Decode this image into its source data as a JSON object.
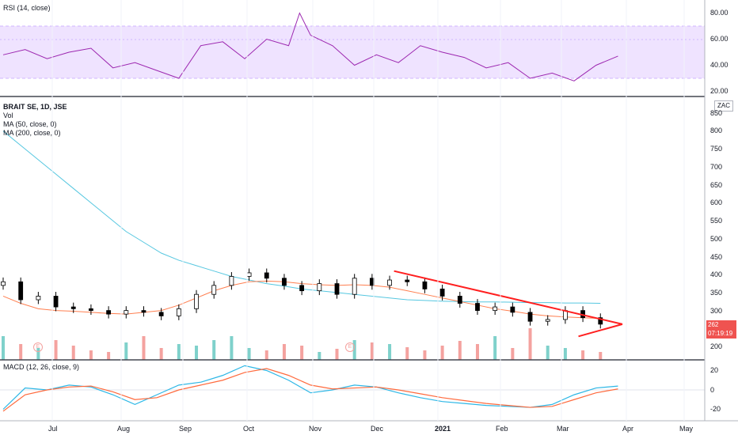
{
  "colors": {
    "up": "#26a69a",
    "down": "#ef5350",
    "rsi": "#9c27b0",
    "ma50": "#ff7f50",
    "ma200": "#56c7e0",
    "macd": "#2db7e6",
    "signal": "#ff6a3d",
    "trend": "#ff1f1f",
    "band": "#efe3ff",
    "volUp": "#7fd1cb",
    "volDown": "#f4a29f"
  },
  "rsi_panel": {
    "title": "RSI (14, close)",
    "ticks": [
      "80.00",
      "60.00",
      "40.00",
      "20.00"
    ]
  },
  "price_panel": {
    "legend": [
      "BRAIT SE, 1D, JSE",
      "Vol",
      "MA (50, close, 0)",
      "MA (200, close, 0)"
    ],
    "currency": "ZAC",
    "ticks": [
      "850",
      "800",
      "750",
      "700",
      "650",
      "600",
      "550",
      "500",
      "450",
      "400",
      "350",
      "300",
      "250",
      "200"
    ],
    "last_price": "262",
    "countdown": "07:19:19",
    "earnings_marker": "E"
  },
  "macd_panel": {
    "title": "MACD (12, 26, close, 9)",
    "ticks": [
      "20",
      "0",
      "-20"
    ]
  },
  "x_axis": {
    "labels": [
      "Jul",
      "Aug",
      "Sep",
      "Oct",
      "Nov",
      "Dec",
      "2021",
      "Feb",
      "Mar",
      "Apr",
      "May"
    ]
  },
  "chart_data": [
    {
      "type": "line",
      "title": "RSI (14, close)",
      "ylim": [
        15,
        85
      ],
      "band": [
        30,
        70
      ],
      "x": [
        0,
        10,
        20,
        30,
        40,
        50,
        60,
        70,
        80,
        90,
        100,
        110,
        120,
        130,
        135,
        140,
        150,
        160,
        170,
        180,
        190,
        200,
        210,
        220,
        230,
        240,
        250,
        260,
        270,
        280
      ],
      "values": [
        48,
        52,
        45,
        50,
        53,
        38,
        42,
        36,
        30,
        55,
        58,
        45,
        60,
        55,
        80,
        63,
        55,
        40,
        48,
        42,
        55,
        50,
        46,
        38,
        42,
        30,
        34,
        28,
        40,
        47
      ],
      "series": [
        {
          "name": "",
          "color": "#9c27b0"
        }
      ]
    },
    {
      "type": "candlestick",
      "title": "BRAIT SE, 1D, JSE",
      "ylim": [
        200,
        850
      ],
      "x": [
        0,
        8,
        16,
        24,
        32,
        40,
        48,
        56,
        64,
        72,
        80,
        88,
        96,
        104,
        112,
        120,
        128,
        136,
        144,
        152,
        160,
        168,
        176,
        184,
        192,
        200,
        208,
        216,
        224,
        232,
        240,
        248,
        256,
        264,
        272
      ],
      "close": [
        380,
        330,
        340,
        310,
        305,
        300,
        290,
        300,
        295,
        285,
        305,
        345,
        370,
        395,
        405,
        390,
        370,
        355,
        375,
        345,
        390,
        370,
        385,
        380,
        360,
        340,
        320,
        300,
        310,
        295,
        270,
        275,
        300,
        280,
        262
      ],
      "ma50": [
        340,
        320,
        305,
        300,
        298,
        295,
        292,
        290,
        295,
        300,
        315,
        335,
        355,
        370,
        380,
        382,
        380,
        375,
        372,
        370,
        372,
        370,
        365,
        355,
        345,
        335,
        325,
        315,
        305,
        298,
        290,
        285,
        282,
        280,
        278
      ],
      "ma200": [
        800,
        760,
        720,
        680,
        640,
        600,
        560,
        520,
        490,
        460,
        440,
        425,
        410,
        395,
        385,
        375,
        368,
        360,
        355,
        350,
        345,
        340,
        335,
        330,
        328,
        326,
        325,
        324,
        324,
        323,
        322,
        322,
        321,
        321,
        320
      ],
      "trendline_upper": [
        [
          178,
          410
        ],
        [
          282,
          262
        ]
      ],
      "trendline_lower": [
        [
          262,
          228
        ],
        [
          282,
          262
        ]
      ]
    },
    {
      "type": "line",
      "title": "MACD (12, 26, close, 9)",
      "ylim": [
        -30,
        30
      ],
      "x": [
        0,
        10,
        20,
        30,
        40,
        50,
        60,
        70,
        80,
        90,
        100,
        110,
        120,
        130,
        140,
        150,
        160,
        170,
        180,
        190,
        200,
        210,
        220,
        230,
        240,
        250,
        260,
        270,
        280
      ],
      "series": [
        {
          "name": "",
          "values": [
            -20,
            2,
            0,
            5,
            3,
            -5,
            -15,
            -5,
            5,
            8,
            15,
            25,
            20,
            10,
            -3,
            0,
            5,
            3,
            -3,
            -8,
            -12,
            -14,
            -16,
            -17,
            -18,
            -15,
            -5,
            2,
            4
          ]
        },
        {
          "name": "",
          "values": [
            -22,
            -5,
            0,
            3,
            4,
            -2,
            -10,
            -8,
            0,
            5,
            10,
            18,
            22,
            15,
            5,
            1,
            2,
            3,
            0,
            -4,
            -8,
            -11,
            -14,
            -16,
            -18,
            -17,
            -10,
            -3,
            1
          ]
        }
      ]
    }
  ]
}
